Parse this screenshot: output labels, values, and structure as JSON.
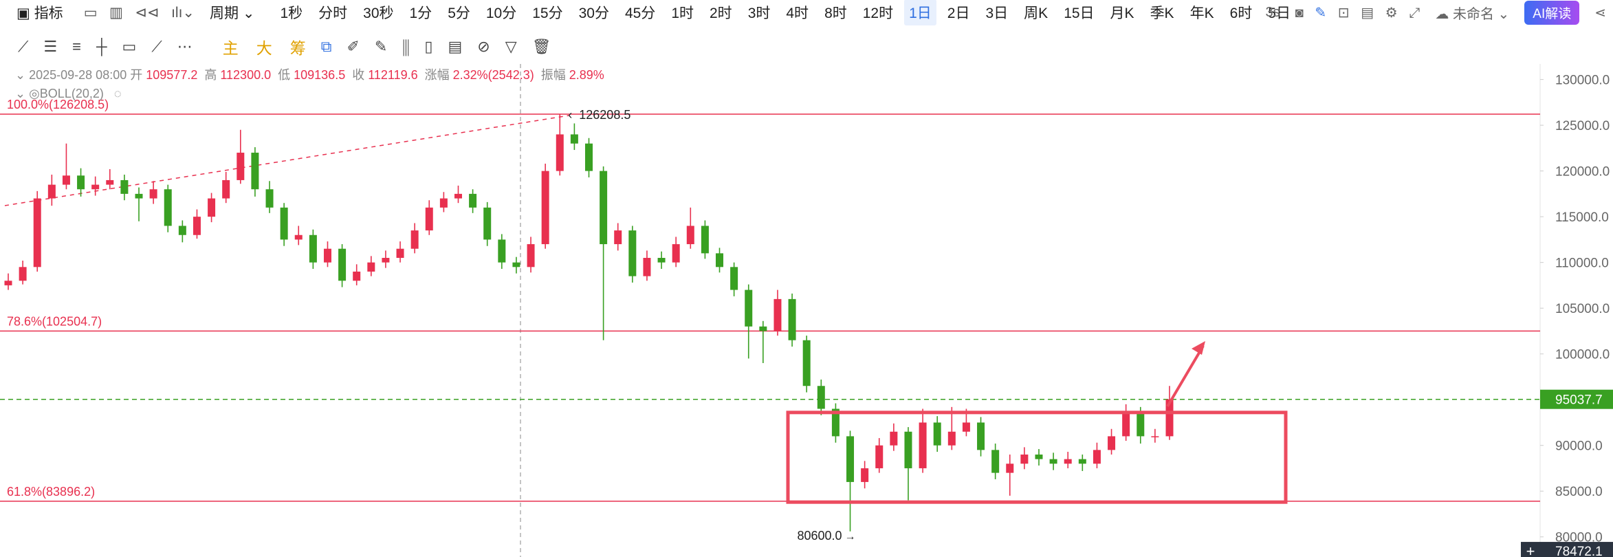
{
  "toolbar": {
    "indicator": "指标",
    "period": "周期",
    "timeframes": [
      "1秒",
      "分时",
      "30秒",
      "1分",
      "5分",
      "10分",
      "15分",
      "30分",
      "45分",
      "1时",
      "2时",
      "3时",
      "4时",
      "8时",
      "12时",
      "1日",
      "2日",
      "3日",
      "周K",
      "15日",
      "月K",
      "季K",
      "年K",
      "6时",
      "5日"
    ],
    "active_index": 15,
    "refresh": "3s",
    "layout_name": "未命名",
    "ai_button": "AI解读"
  },
  "drawing_toolbar": {
    "text_tools": [
      "主",
      "大",
      "筹"
    ]
  },
  "info_bar": {
    "date": "2025-09-28 08:00",
    "fields": [
      {
        "label": "开",
        "value": "109577.2"
      },
      {
        "label": "高",
        "value": "112300.0"
      },
      {
        "label": "低",
        "value": "109136.5"
      },
      {
        "label": "收",
        "value": "112119.6"
      },
      {
        "label": "涨幅",
        "value": "2.32%(2542.3)"
      },
      {
        "label": "振幅",
        "value": "2.89%"
      }
    ],
    "indicator": "BOLL(20,2)"
  },
  "chart_data": {
    "type": "candlestick",
    "up_color": "#e8304f",
    "down_color": "#39a022",
    "ylim": [
      77800,
      131700
    ],
    "yticks": [
      {
        "value": 80000,
        "label": "80000.0"
      },
      {
        "value": 85000,
        "label": "85000.0"
      },
      {
        "value": 90000,
        "label": "90000.0"
      },
      {
        "value": 95000,
        "label": "95000.0"
      },
      {
        "value": 100000,
        "label": "100000.0"
      },
      {
        "value": 105000,
        "label": "105000.0"
      },
      {
        "value": 110000,
        "label": "110000.0"
      },
      {
        "value": 115000,
        "label": "115000.0"
      },
      {
        "value": 120000,
        "label": "120000.0"
      },
      {
        "value": 125000,
        "label": "125000.0"
      },
      {
        "value": 130000,
        "label": "130000.0"
      }
    ],
    "levels": [
      {
        "label": "100.0%(126208.5)",
        "value": 126208.5
      },
      {
        "label": "78.6%(102504.7)",
        "value": 102504.7
      },
      {
        "label": "61.8%(83896.2)",
        "value": 83896.2
      }
    ],
    "level_color": "#e8304f",
    "last_price": 95037.7,
    "last_price_color": "#39a022",
    "crosshair_price": 78472.1,
    "high_label": {
      "value": 126208.5,
      "label": "126208.5"
    },
    "low_label": {
      "value": 80600,
      "label": "80600.0"
    },
    "box": {
      "top": 93600,
      "bottom": 83800
    },
    "candles": [
      [
        107500,
        108800,
        107000,
        108000
      ],
      [
        108000,
        110200,
        107600,
        109500
      ],
      [
        109500,
        117800,
        109000,
        117000
      ],
      [
        117000,
        119600,
        116200,
        118500
      ],
      [
        118500,
        123000,
        118000,
        119500
      ],
      [
        119500,
        120300,
        117200,
        118000
      ],
      [
        118000,
        119400,
        117300,
        118500
      ],
      [
        118500,
        120200,
        118000,
        119000
      ],
      [
        119000,
        119600,
        116800,
        117500
      ],
      [
        117500,
        118200,
        114500,
        117000
      ],
      [
        117000,
        118900,
        116400,
        118000
      ],
      [
        118000,
        118500,
        113300,
        114000
      ],
      [
        114000,
        114600,
        112200,
        113000
      ],
      [
        113000,
        115800,
        112600,
        115000
      ],
      [
        115000,
        117600,
        114400,
        117000
      ],
      [
        117000,
        119900,
        116500,
        119000
      ],
      [
        119000,
        124500,
        118600,
        122000
      ],
      [
        122000,
        122600,
        117200,
        118000
      ],
      [
        118000,
        118900,
        115400,
        116000
      ],
      [
        116000,
        116500,
        111800,
        112500
      ],
      [
        112500,
        114000,
        111900,
        113000
      ],
      [
        113000,
        113600,
        109300,
        110000
      ],
      [
        110000,
        112300,
        109500,
        111500
      ],
      [
        111500,
        112000,
        107300,
        108000
      ],
      [
        108000,
        109800,
        107500,
        109000
      ],
      [
        109000,
        110700,
        108500,
        110000
      ],
      [
        110000,
        111300,
        109400,
        110500
      ],
      [
        110500,
        112300,
        110000,
        111500
      ],
      [
        111500,
        114300,
        111000,
        113500
      ],
      [
        113500,
        116800,
        113000,
        116000
      ],
      [
        116000,
        117700,
        115500,
        117000
      ],
      [
        117000,
        118400,
        116500,
        117500
      ],
      [
        117500,
        118000,
        115400,
        116000
      ],
      [
        116000,
        116600,
        111800,
        112500
      ],
      [
        112500,
        113100,
        109300,
        110000
      ],
      [
        110000,
        110600,
        108800,
        109500
      ],
      [
        109500,
        112800,
        108900,
        112000
      ],
      [
        112000,
        120800,
        111500,
        120000
      ],
      [
        120000,
        126208.5,
        119500,
        124000
      ],
      [
        124000,
        125200,
        122300,
        123000
      ],
      [
        123000,
        123600,
        119300,
        120000
      ],
      [
        120000,
        120500,
        101500,
        112000
      ],
      [
        112000,
        114300,
        111300,
        113500
      ],
      [
        113500,
        114000,
        107800,
        108500
      ],
      [
        108500,
        111300,
        108000,
        110500
      ],
      [
        110500,
        111200,
        109300,
        110000
      ],
      [
        110000,
        112800,
        109500,
        112000
      ],
      [
        112000,
        116000,
        111500,
        114000
      ],
      [
        114000,
        114600,
        110400,
        111000
      ],
      [
        111000,
        111600,
        108900,
        109500
      ],
      [
        109500,
        110000,
        106300,
        107000
      ],
      [
        107000,
        107600,
        99500,
        103000
      ],
      [
        103000,
        103600,
        99000,
        102500
      ],
      [
        102500,
        107000,
        102000,
        106000
      ],
      [
        106000,
        106600,
        100800,
        101500
      ],
      [
        101500,
        102000,
        95800,
        96500
      ],
      [
        96500,
        97200,
        93300,
        94000
      ],
      [
        94000,
        94600,
        90300,
        91000
      ],
      [
        91000,
        91600,
        80600,
        86000
      ],
      [
        86000,
        88300,
        85300,
        87500
      ],
      [
        87500,
        90800,
        87000,
        90000
      ],
      [
        90000,
        92400,
        89400,
        91500
      ],
      [
        91500,
        92000,
        84000,
        87500
      ],
      [
        87500,
        94000,
        87000,
        92500
      ],
      [
        92500,
        93200,
        89300,
        90000
      ],
      [
        90000,
        94200,
        89500,
        91500
      ],
      [
        91500,
        94000,
        91000,
        92500
      ],
      [
        92500,
        93100,
        88800,
        89500
      ],
      [
        89500,
        90200,
        86300,
        87000
      ],
      [
        87000,
        89000,
        84500,
        88000
      ],
      [
        88000,
        89800,
        87400,
        89000
      ],
      [
        89000,
        89600,
        87800,
        88500
      ],
      [
        88500,
        89200,
        87300,
        88000
      ],
      [
        88000,
        89300,
        87500,
        88500
      ],
      [
        88500,
        89000,
        87200,
        88000
      ],
      [
        88000,
        90300,
        87500,
        89500
      ],
      [
        89500,
        91800,
        89000,
        91000
      ],
      [
        91000,
        94500,
        90500,
        93500
      ],
      [
        93500,
        94200,
        90200,
        91000
      ],
      [
        91000,
        91800,
        90300,
        91000
      ],
      [
        91000,
        96500,
        90600,
        95037.7
      ]
    ]
  }
}
